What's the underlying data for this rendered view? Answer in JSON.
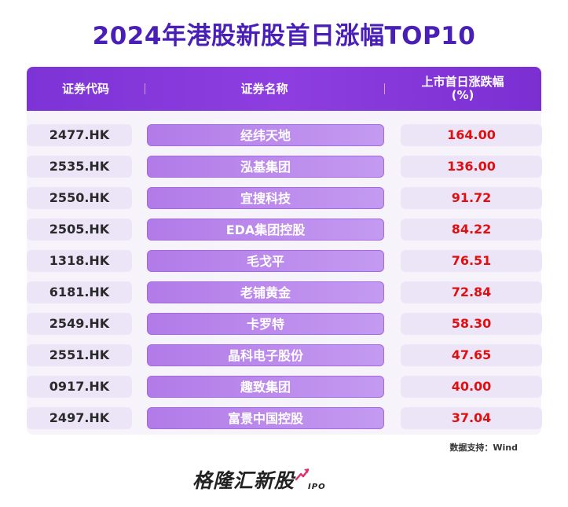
{
  "title": "2024年港股新股首日涨幅TOP10",
  "header": {
    "code": "证券代码",
    "name": "证券名称",
    "pct_line1": "上市首日涨跌幅",
    "pct_line2": "(%)"
  },
  "rows": [
    {
      "code": "2477.HK",
      "name": "经纬天地",
      "pct": "164.00"
    },
    {
      "code": "2535.HK",
      "name": "泓基集团",
      "pct": "136.00"
    },
    {
      "code": "2550.HK",
      "name": "宜搜科技",
      "pct": "91.72"
    },
    {
      "code": "2505.HK",
      "name": "EDA集团控股",
      "pct": "84.22"
    },
    {
      "code": "1318.HK",
      "name": "毛戈平",
      "pct": "76.51"
    },
    {
      "code": "6181.HK",
      "name": "老铺黄金",
      "pct": "72.84"
    },
    {
      "code": "2549.HK",
      "name": "卡罗特",
      "pct": "58.30"
    },
    {
      "code": "2551.HK",
      "name": "晶科电子股份",
      "pct": "47.65"
    },
    {
      "code": "0917.HK",
      "name": "趣致集团",
      "pct": "40.00"
    },
    {
      "code": "2497.HK",
      "name": "富景中国控股",
      "pct": "37.04"
    }
  ],
  "source": "数据支持：Wind",
  "logo": {
    "text": "格隆汇新股",
    "sub": "IPO"
  },
  "colors": {
    "title": "#4a1fb8",
    "header": "#8e3ee0",
    "value": "#e01010",
    "name_pill": "#b27be8"
  },
  "chart_data": {
    "type": "table",
    "title": "2024年港股新股首日涨幅TOP10",
    "columns": [
      "证券代码",
      "证券名称",
      "上市首日涨跌幅(%)"
    ],
    "rows": [
      [
        "2477.HK",
        "经纬天地",
        164.0
      ],
      [
        "2535.HK",
        "泓基集团",
        136.0
      ],
      [
        "2550.HK",
        "宜搜科技",
        91.72
      ],
      [
        "2505.HK",
        "EDA集团控股",
        84.22
      ],
      [
        "1318.HK",
        "毛戈平",
        76.51
      ],
      [
        "6181.HK",
        "老铺黄金",
        72.84
      ],
      [
        "2549.HK",
        "卡罗特",
        58.3
      ],
      [
        "2551.HK",
        "晶科电子股份",
        47.65
      ],
      [
        "0917.HK",
        "趣致集团",
        40.0
      ],
      [
        "2497.HK",
        "富景中国控股",
        37.04
      ]
    ]
  }
}
